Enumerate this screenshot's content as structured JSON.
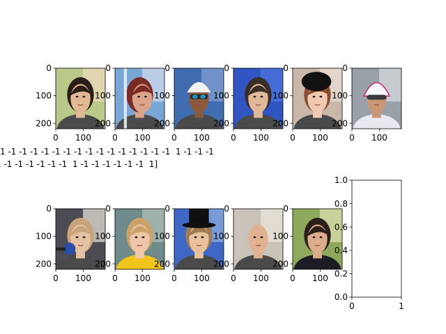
{
  "chart_data": {
    "type": "image-grid",
    "panels": [
      {
        "kind": "image",
        "image": "face-man-dark-hair",
        "row": 0,
        "col": 0,
        "xlim": [
          0,
          180
        ],
        "ylim": [
          220,
          0
        ],
        "xticks": [
          "0",
          "100"
        ],
        "yticks": [
          "0",
          "100",
          "200"
        ]
      },
      {
        "kind": "image",
        "image": "face-profile-red-hair",
        "row": 0,
        "col": 1,
        "xlim": [
          0,
          180
        ],
        "ylim": [
          220,
          0
        ],
        "xticks": [
          "0",
          "100"
        ],
        "yticks": [
          "0",
          "100",
          "200"
        ]
      },
      {
        "kind": "image",
        "image": "face-swimmer-goggles",
        "row": 0,
        "col": 2,
        "xlim": [
          0,
          180
        ],
        "ylim": [
          220,
          0
        ],
        "xticks": [
          "0",
          "100"
        ],
        "yticks": [
          "0",
          "100",
          "200"
        ]
      },
      {
        "kind": "image",
        "image": "face-man-blue-background",
        "row": 0,
        "col": 3,
        "xlim": [
          0,
          180
        ],
        "ylim": [
          220,
          0
        ],
        "xticks": [
          "0",
          "100"
        ],
        "yticks": [
          "0",
          "100",
          "200"
        ]
      },
      {
        "kind": "image",
        "image": "face-woman-black-fascinator",
        "row": 0,
        "col": 4,
        "xlim": [
          0,
          180
        ],
        "ylim": [
          220,
          0
        ],
        "xticks": [
          "0",
          "100"
        ],
        "yticks": [
          "0",
          "100",
          "200"
        ]
      },
      {
        "kind": "image",
        "image": "face-cyclist-helmet",
        "row": 0,
        "col": 5,
        "xlim": [
          0,
          180
        ],
        "ylim": [
          220,
          0
        ],
        "xticks": [
          "0",
          "100"
        ],
        "yticks": [
          "0",
          "100",
          "200"
        ]
      },
      {
        "kind": "image",
        "image": "face-man-microphone",
        "row": 1,
        "col": 0,
        "xlim": [
          0,
          180
        ],
        "ylim": [
          220,
          0
        ],
        "xticks": [
          "0",
          "100"
        ],
        "yticks": [
          "0",
          "100",
          "200"
        ]
      },
      {
        "kind": "image",
        "image": "face-woman-blonde-braid",
        "row": 1,
        "col": 1,
        "xlim": [
          0,
          180
        ],
        "ylim": [
          220,
          0
        ],
        "xticks": [
          "0",
          "100"
        ],
        "yticks": [
          "0",
          "100",
          "200"
        ]
      },
      {
        "kind": "image",
        "image": "face-woman-top-hat",
        "row": 1,
        "col": 2,
        "xlim": [
          0,
          180
        ],
        "ylim": [
          220,
          0
        ],
        "xticks": [
          "0",
          "100"
        ],
        "yticks": [
          "0",
          "100",
          "200"
        ]
      },
      {
        "kind": "image",
        "image": "face-bald-man",
        "row": 1,
        "col": 3,
        "xlim": [
          0,
          180
        ],
        "ylim": [
          220,
          0
        ],
        "xticks": [
          "0",
          "100"
        ],
        "yticks": [
          "0",
          "100",
          "200"
        ]
      },
      {
        "kind": "image",
        "image": "face-young-man-dark-hair",
        "row": 1,
        "col": 4,
        "xlim": [
          0,
          180
        ],
        "ylim": [
          220,
          0
        ],
        "xticks": [
          "0",
          "100"
        ],
        "yticks": [
          "0",
          "100",
          "200"
        ]
      },
      {
        "kind": "empty-axes",
        "row": 1,
        "col": 5,
        "xlim": [
          0,
          1
        ],
        "ylim": [
          0,
          1
        ],
        "xticks": [
          "0",
          "1"
        ],
        "yticks": [
          "0.0",
          "0.2",
          "0.4",
          "0.6",
          "0.8",
          "1.0"
        ]
      }
    ],
    "stray_text": [
      "1 -1 -1 -1 -1 -1 -1 -1 -1 -1 -1 -1 -1 -1 -1 -1  1 -1 -1 -1",
      "1 -1 -1 -1 -1 -1 -1  1 -1 -1 -1 -1 -1 -1  1]"
    ]
  }
}
